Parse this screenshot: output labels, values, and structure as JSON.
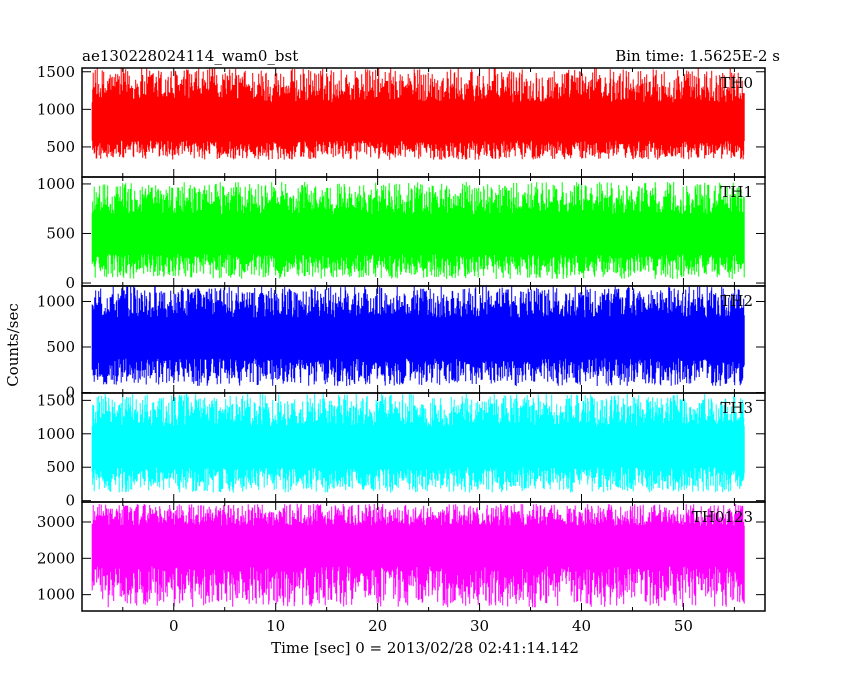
{
  "header": {
    "title": "ae130228024114_wam0_bst",
    "bin_time": "Bin time: 1.5625E-2 s"
  },
  "chart_data": {
    "type": "line",
    "ylabel": "Counts/sec",
    "xlabel": "Time [sec] 0 = 2013/02/28 02:41:14.142",
    "xlim": [
      -9,
      58
    ],
    "x_ticks": [
      0,
      10,
      20,
      30,
      40,
      50
    ],
    "x_tick_labels": [
      "0",
      "10",
      "20",
      "30",
      "40",
      "50"
    ],
    "x_data_range": [
      -8,
      56
    ],
    "bin_time_s": 0.015625,
    "panels": [
      {
        "name": "TH0",
        "color": "#ff0000",
        "ylim": [
          100,
          1550
        ],
        "yticks": [
          500,
          1000,
          1500
        ],
        "ytick_labels": [
          "500",
          "1000",
          "1500"
        ],
        "mean": 720,
        "min": 330,
        "max": 1550
      },
      {
        "name": "TH1",
        "color": "#00ff00",
        "ylim": [
          -30,
          1070
        ],
        "yticks": [
          0,
          500,
          1000
        ],
        "ytick_labels": [
          "0",
          "500",
          "1000"
        ],
        "mean": 430,
        "min": 40,
        "max": 1020
      },
      {
        "name": "TH2",
        "color": "#0000ff",
        "ylim": [
          -5,
          1170
        ],
        "yticks": [
          0,
          500,
          1000
        ],
        "ytick_labels": [
          "0",
          "500",
          "1000"
        ],
        "mean": 540,
        "min": 70,
        "max": 1170
      },
      {
        "name": "TH3",
        "color": "#00ffff",
        "ylim": [
          -20,
          1610
        ],
        "yticks": [
          0,
          500,
          1000,
          1500
        ],
        "ytick_labels": [
          "0",
          "500",
          "1000",
          "1500"
        ],
        "mean": 710,
        "min": 120,
        "max": 1600
      },
      {
        "name": "TH0123",
        "color": "#ff00ff",
        "ylim": [
          550,
          3550
        ],
        "yticks": [
          1000,
          2000,
          3000
        ],
        "ytick_labels": [
          "1000",
          "2000",
          "3000"
        ],
        "mean": 2400,
        "min": 650,
        "max": 3500
      }
    ]
  }
}
